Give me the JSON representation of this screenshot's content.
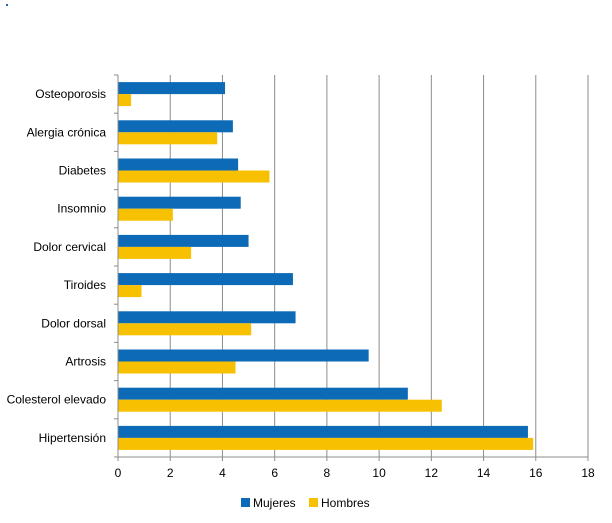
{
  "chart_data": {
    "type": "bar",
    "orientation": "horizontal",
    "categories": [
      "Osteoporosis",
      "Alergia crónica",
      "Diabetes",
      "Insomnio",
      "Dolor cervical",
      "Tiroides",
      "Dolor dorsal",
      "Artrosis",
      "Colesterol elevado",
      "Hipertensión"
    ],
    "series": [
      {
        "name": "Mujeres",
        "color": "#0c6ab6",
        "values": [
          4.1,
          4.4,
          4.6,
          4.7,
          5.0,
          6.7,
          6.8,
          9.6,
          11.1,
          15.7
        ]
      },
      {
        "name": "Hombres",
        "color": "#f7c000",
        "values": [
          0.5,
          3.8,
          5.8,
          2.1,
          2.8,
          0.9,
          5.1,
          4.5,
          12.4,
          15.9
        ]
      }
    ],
    "x_ticks": [
      "0",
      "2",
      "4",
      "6",
      "8",
      "10",
      "12",
      "14",
      "16",
      "18"
    ],
    "xlim": [
      0,
      18
    ],
    "grid": "vertical",
    "legend_position": "bottom"
  }
}
